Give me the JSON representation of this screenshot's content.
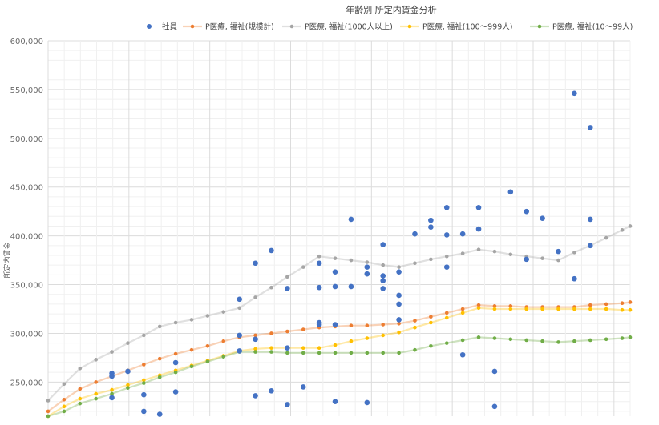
{
  "chart_data": {
    "type": "scatter",
    "title": "年齢別 所定内賃金分析",
    "xlabel": "",
    "ylabel": "所定内賃金",
    "ylim": [
      215000,
      600000
    ],
    "xlim": [
      0,
      73
    ],
    "grid": true,
    "legend_position": "top-right",
    "y_ticks": [
      "600,000",
      "550,000",
      "500,000",
      "450,000",
      "400,000",
      "350,000",
      "300,000",
      "250,000"
    ],
    "y_tick_values": [
      600000,
      550000,
      500000,
      450000,
      400000,
      350000,
      300000,
      250000
    ],
    "series": [
      {
        "name": "社員",
        "kind": "scatter",
        "color": "#4472c4",
        "points": [
          [
            8,
            259000
          ],
          [
            8,
            256000
          ],
          [
            8,
            234000
          ],
          [
            10,
            261000
          ],
          [
            12,
            237000
          ],
          [
            12,
            220000
          ],
          [
            14,
            217000
          ],
          [
            16,
            270000
          ],
          [
            16,
            240000
          ],
          [
            24,
            335000
          ],
          [
            24,
            298000
          ],
          [
            24,
            282000
          ],
          [
            26,
            372000
          ],
          [
            26,
            236000
          ],
          [
            26,
            294000
          ],
          [
            28,
            385000
          ],
          [
            28,
            241000
          ],
          [
            30,
            346000
          ],
          [
            30,
            285000
          ],
          [
            30,
            227000
          ],
          [
            32,
            245000
          ],
          [
            34,
            372000
          ],
          [
            34,
            347000
          ],
          [
            34,
            311000
          ],
          [
            34,
            309000
          ],
          [
            36,
            363000
          ],
          [
            36,
            348000
          ],
          [
            36,
            309000
          ],
          [
            36,
            230000
          ],
          [
            38,
            417000
          ],
          [
            38,
            348000
          ],
          [
            40,
            368000
          ],
          [
            40,
            361000
          ],
          [
            40,
            229000
          ],
          [
            42,
            391000
          ],
          [
            42,
            359000
          ],
          [
            42,
            354000
          ],
          [
            42,
            346000
          ],
          [
            44,
            363000
          ],
          [
            44,
            339000
          ],
          [
            44,
            330000
          ],
          [
            44,
            314000
          ],
          [
            46,
            402000
          ],
          [
            48,
            416000
          ],
          [
            48,
            409000
          ],
          [
            50,
            429000
          ],
          [
            50,
            401000
          ],
          [
            50,
            368000
          ],
          [
            52,
            402000
          ],
          [
            52,
            278000
          ],
          [
            54,
            429000
          ],
          [
            54,
            407000
          ],
          [
            56,
            261000
          ],
          [
            56,
            225000
          ],
          [
            58,
            445000
          ],
          [
            60,
            425000
          ],
          [
            60,
            376000
          ],
          [
            62,
            418000
          ],
          [
            64,
            384000
          ],
          [
            66,
            546000
          ],
          [
            66,
            356000
          ],
          [
            68,
            511000
          ],
          [
            68,
            417000
          ],
          [
            68,
            390000
          ]
        ]
      },
      {
        "name": "P医療, 福祉(規模計)",
        "kind": "line",
        "color": "#ed7d31",
        "points": [
          [
            0,
            220000
          ],
          [
            2,
            232000
          ],
          [
            4,
            243000
          ],
          [
            6,
            250000
          ],
          [
            8,
            256000
          ],
          [
            10,
            262000
          ],
          [
            12,
            268000
          ],
          [
            14,
            274000
          ],
          [
            16,
            279000
          ],
          [
            18,
            283000
          ],
          [
            20,
            287000
          ],
          [
            22,
            292000
          ],
          [
            24,
            296000
          ],
          [
            26,
            298000
          ],
          [
            28,
            300000
          ],
          [
            30,
            302000
          ],
          [
            32,
            304000
          ],
          [
            34,
            306000
          ],
          [
            36,
            307000
          ],
          [
            38,
            308000
          ],
          [
            40,
            308000
          ],
          [
            42,
            309000
          ],
          [
            44,
            310000
          ],
          [
            46,
            313000
          ],
          [
            48,
            317000
          ],
          [
            50,
            321000
          ],
          [
            52,
            325000
          ],
          [
            54,
            329000
          ],
          [
            56,
            328000
          ],
          [
            58,
            328000
          ],
          [
            60,
            327000
          ],
          [
            62,
            327000
          ],
          [
            64,
            327000
          ],
          [
            66,
            327000
          ],
          [
            68,
            329000
          ],
          [
            70,
            330000
          ],
          [
            72,
            331000
          ],
          [
            73,
            332000
          ]
        ]
      },
      {
        "name": "P医療, 福祉(1000人以上)",
        "kind": "line",
        "color": "#a5a5a5",
        "points": [
          [
            0,
            231000
          ],
          [
            2,
            248000
          ],
          [
            4,
            264000
          ],
          [
            6,
            273000
          ],
          [
            8,
            281000
          ],
          [
            10,
            290000
          ],
          [
            12,
            298000
          ],
          [
            14,
            307000
          ],
          [
            16,
            311000
          ],
          [
            18,
            314000
          ],
          [
            20,
            318000
          ],
          [
            22,
            322000
          ],
          [
            24,
            326000
          ],
          [
            26,
            337000
          ],
          [
            28,
            347000
          ],
          [
            30,
            358000
          ],
          [
            32,
            368000
          ],
          [
            34,
            379000
          ],
          [
            36,
            377000
          ],
          [
            38,
            375000
          ],
          [
            40,
            373000
          ],
          [
            42,
            370000
          ],
          [
            44,
            368000
          ],
          [
            46,
            372000
          ],
          [
            48,
            376000
          ],
          [
            50,
            379000
          ],
          [
            52,
            382000
          ],
          [
            54,
            386000
          ],
          [
            56,
            384000
          ],
          [
            58,
            381000
          ],
          [
            60,
            379000
          ],
          [
            62,
            377000
          ],
          [
            64,
            375000
          ],
          [
            66,
            383000
          ],
          [
            68,
            390000
          ],
          [
            70,
            398000
          ],
          [
            72,
            406000
          ],
          [
            73,
            410000
          ]
        ]
      },
      {
        "name": "P医療, 福祉(100〜999人)",
        "kind": "line",
        "color": "#ffc000",
        "points": [
          [
            0,
            215000
          ],
          [
            2,
            225000
          ],
          [
            4,
            233000
          ],
          [
            6,
            238000
          ],
          [
            8,
            242000
          ],
          [
            10,
            247000
          ],
          [
            12,
            252000
          ],
          [
            14,
            257000
          ],
          [
            16,
            262000
          ],
          [
            18,
            267000
          ],
          [
            20,
            272000
          ],
          [
            22,
            277000
          ],
          [
            24,
            282000
          ],
          [
            26,
            284000
          ],
          [
            28,
            285000
          ],
          [
            30,
            285000
          ],
          [
            32,
            285000
          ],
          [
            34,
            285000
          ],
          [
            36,
            288000
          ],
          [
            38,
            292000
          ],
          [
            40,
            295000
          ],
          [
            42,
            298000
          ],
          [
            44,
            301000
          ],
          [
            46,
            306000
          ],
          [
            48,
            311000
          ],
          [
            50,
            316000
          ],
          [
            52,
            321000
          ],
          [
            54,
            326000
          ],
          [
            56,
            325000
          ],
          [
            58,
            325000
          ],
          [
            60,
            325000
          ],
          [
            62,
            325000
          ],
          [
            64,
            325000
          ],
          [
            66,
            325000
          ],
          [
            68,
            325000
          ],
          [
            70,
            325000
          ],
          [
            72,
            324000
          ],
          [
            73,
            324000
          ]
        ]
      },
      {
        "name": "P医療, 福祉(10〜99人)",
        "kind": "line",
        "color": "#70ad47",
        "points": [
          [
            0,
            215000
          ],
          [
            2,
            220000
          ],
          [
            4,
            228000
          ],
          [
            6,
            233000
          ],
          [
            8,
            238000
          ],
          [
            10,
            244000
          ],
          [
            12,
            249000
          ],
          [
            14,
            255000
          ],
          [
            16,
            260000
          ],
          [
            18,
            266000
          ],
          [
            20,
            271000
          ],
          [
            22,
            276000
          ],
          [
            24,
            281000
          ],
          [
            26,
            281000
          ],
          [
            28,
            281000
          ],
          [
            30,
            280000
          ],
          [
            32,
            280000
          ],
          [
            34,
            280000
          ],
          [
            36,
            280000
          ],
          [
            38,
            280000
          ],
          [
            40,
            280000
          ],
          [
            42,
            280000
          ],
          [
            44,
            280000
          ],
          [
            46,
            283000
          ],
          [
            48,
            287000
          ],
          [
            50,
            290000
          ],
          [
            52,
            293000
          ],
          [
            54,
            296000
          ],
          [
            56,
            295000
          ],
          [
            58,
            294000
          ],
          [
            60,
            293000
          ],
          [
            62,
            292000
          ],
          [
            64,
            291000
          ],
          [
            66,
            292000
          ],
          [
            68,
            293000
          ],
          [
            70,
            294000
          ],
          [
            72,
            295000
          ],
          [
            73,
            296000
          ]
        ]
      }
    ]
  }
}
